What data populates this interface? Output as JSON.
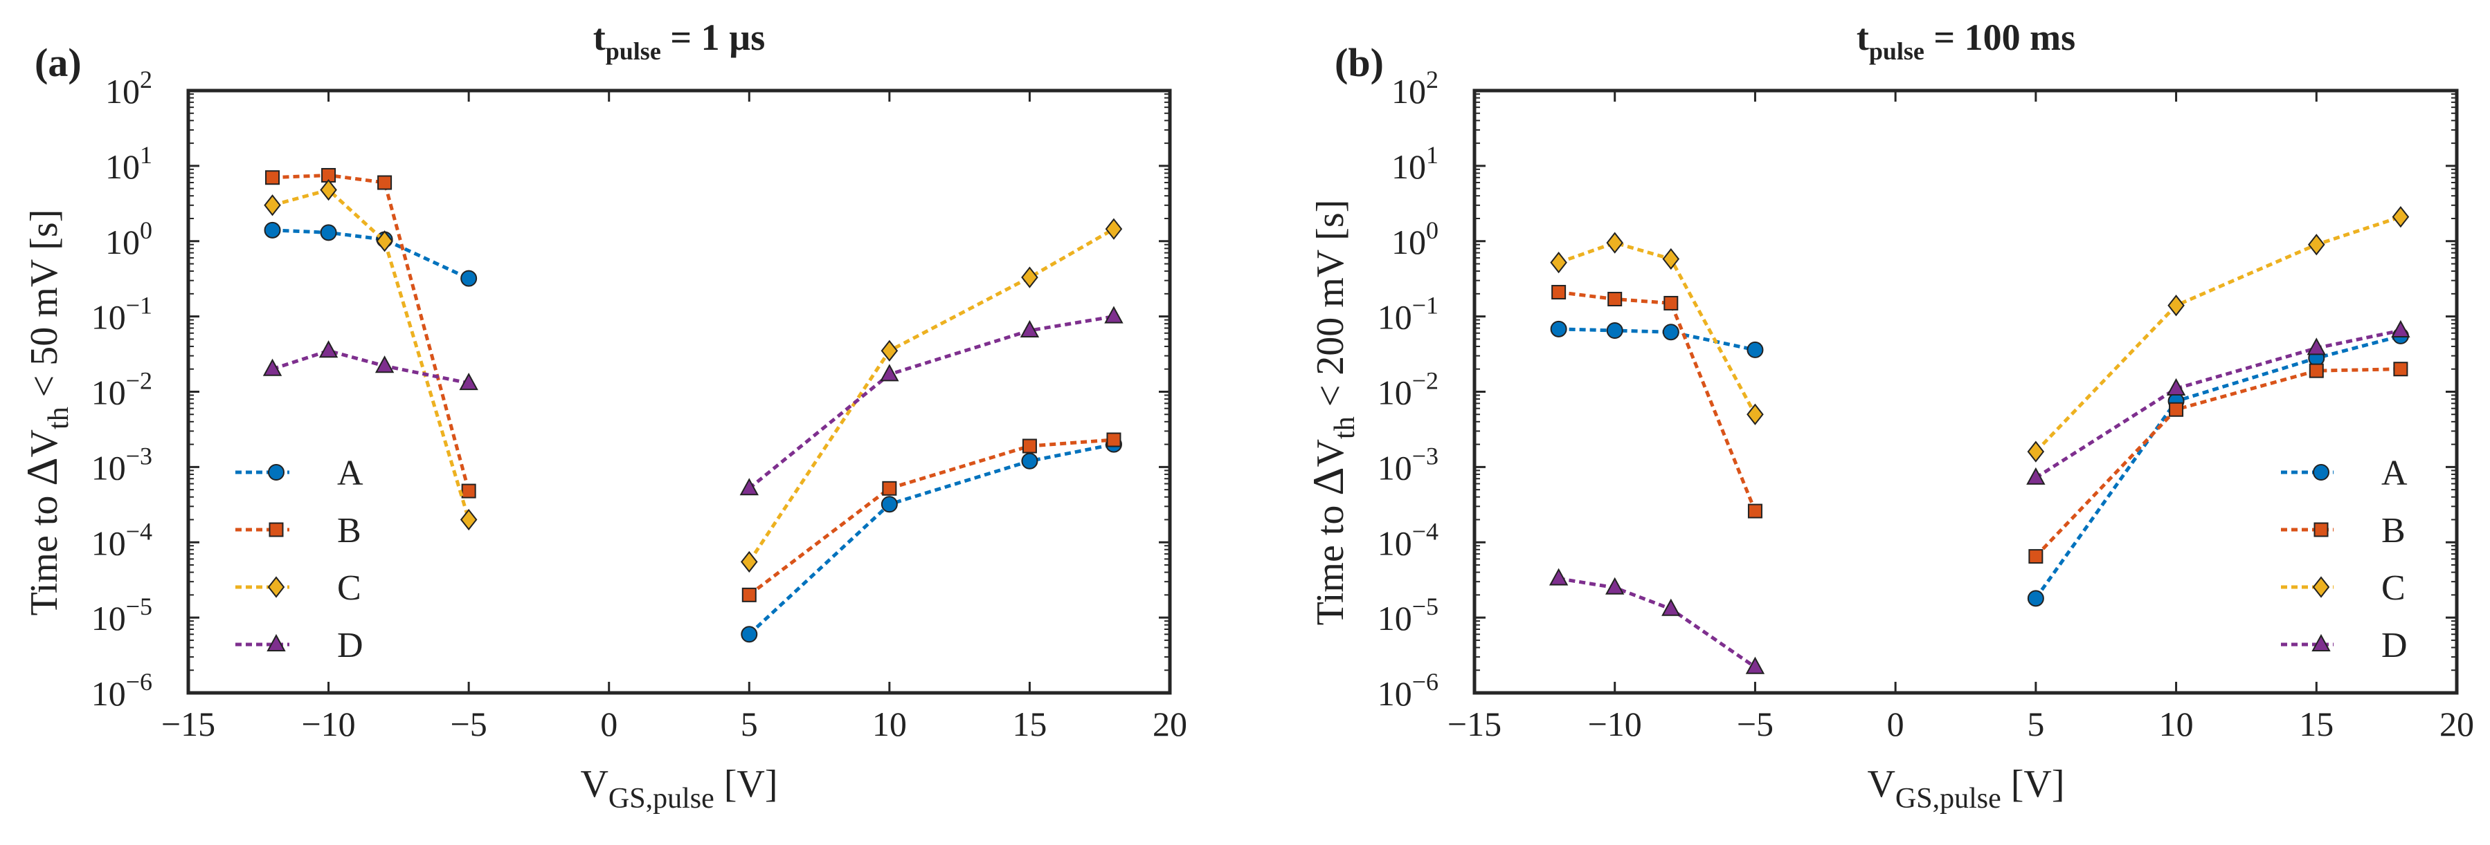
{
  "figure": {
    "panels": [
      {
        "label": "(a)",
        "title_main": "t",
        "title_sub": "pulse",
        "title_rest": " = 1 µs",
        "ylabel_pre": "Time to ",
        "ylabel_delta": "Δ",
        "ylabel_v": "V",
        "ylabel_sub": "th",
        "ylabel_post": " < 50 mV [s]"
      },
      {
        "label": "(b)",
        "title_main": "t",
        "title_sub": "pulse",
        "title_rest": " = 100 ms",
        "ylabel_pre": "Time to ",
        "ylabel_delta": "Δ",
        "ylabel_v": "V",
        "ylabel_sub": "th",
        "ylabel_post": " < 200 mV [s]"
      }
    ],
    "xlabel_main": "V",
    "xlabel_sub": "GS,pulse",
    "xlabel_unit": " [V]",
    "ytick_base": "10"
  },
  "chart_data": [
    {
      "type": "line",
      "title": "tpulse = 1 µs",
      "xlabel": "VGS,pulse [V]",
      "ylabel": "Time to ΔVth < 50 mV [s]",
      "yscale": "log",
      "xlim": [
        -15,
        20
      ],
      "ylim": [
        1e-06,
        100
      ],
      "xticks": [
        -15,
        -10,
        -5,
        0,
        5,
        10,
        15,
        20
      ],
      "yticks_exp": [
        -6,
        -5,
        -4,
        -3,
        -2,
        -1,
        0,
        1,
        2
      ],
      "legend_position": "lower-left",
      "series": [
        {
          "name": "A",
          "color": "#0072BD",
          "marker": "circle",
          "segments": [
            {
              "x": [
                -12,
                -10,
                -8,
                -5
              ],
              "y": [
                1.4,
                1.3,
                1.05,
                0.32
              ]
            },
            {
              "x": [
                5,
                10,
                15,
                18
              ],
              "y": [
                6e-06,
                0.00032,
                0.0012,
                0.002
              ]
            }
          ]
        },
        {
          "name": "B",
          "color": "#D95319",
          "marker": "square",
          "segments": [
            {
              "x": [
                -12,
                -10,
                -8,
                -5
              ],
              "y": [
                7.0,
                7.5,
                6.0,
                0.00048
              ]
            },
            {
              "x": [
                5,
                10,
                15,
                18
              ],
              "y": [
                2e-05,
                0.00052,
                0.0019,
                0.0023
              ]
            }
          ]
        },
        {
          "name": "C",
          "color": "#EDB120",
          "marker": "diamond",
          "segments": [
            {
              "x": [
                -12,
                -10,
                -8,
                -5
              ],
              "y": [
                3.0,
                4.8,
                1.0,
                0.0002
              ]
            },
            {
              "x": [
                5,
                10,
                15,
                18
              ],
              "y": [
                5.5e-05,
                0.035,
                0.33,
                1.45
              ]
            }
          ]
        },
        {
          "name": "D",
          "color": "#7E2F8E",
          "marker": "triangle",
          "segments": [
            {
              "x": [
                -12,
                -10,
                -8,
                -5
              ],
              "y": [
                0.02,
                0.035,
                0.022,
                0.013
              ]
            },
            {
              "x": [
                5,
                10,
                15,
                18
              ],
              "y": [
                0.00052,
                0.017,
                0.065,
                0.1
              ]
            }
          ]
        }
      ]
    },
    {
      "type": "line",
      "title": "tpulse = 100 ms",
      "xlabel": "VGS,pulse [V]",
      "ylabel": "Time to ΔVth < 200 mV [s]",
      "yscale": "log",
      "xlim": [
        -15,
        20
      ],
      "ylim": [
        1e-06,
        100
      ],
      "xticks": [
        -15,
        -10,
        -5,
        0,
        5,
        10,
        15,
        20
      ],
      "yticks_exp": [
        -6,
        -5,
        -4,
        -3,
        -2,
        -1,
        0,
        1,
        2
      ],
      "legend_position": "lower-right",
      "series": [
        {
          "name": "A",
          "color": "#0072BD",
          "marker": "circle",
          "segments": [
            {
              "x": [
                -12,
                -10,
                -8,
                -5
              ],
              "y": [
                0.068,
                0.065,
                0.062,
                0.036
              ]
            },
            {
              "x": [
                5,
                10,
                15,
                18
              ],
              "y": [
                1.8e-05,
                0.0075,
                0.028,
                0.055
              ]
            }
          ]
        },
        {
          "name": "B",
          "color": "#D95319",
          "marker": "square",
          "segments": [
            {
              "x": [
                -12,
                -10,
                -8,
                -5
              ],
              "y": [
                0.21,
                0.17,
                0.15,
                0.00026
              ]
            },
            {
              "x": [
                5,
                10,
                15,
                18
              ],
              "y": [
                6.5e-05,
                0.0058,
                0.019,
                0.02
              ]
            }
          ]
        },
        {
          "name": "C",
          "color": "#EDB120",
          "marker": "diamond",
          "segments": [
            {
              "x": [
                -12,
                -10,
                -8,
                -5
              ],
              "y": [
                0.52,
                0.95,
                0.58,
                0.005
              ]
            },
            {
              "x": [
                5,
                10,
                15,
                18
              ],
              "y": [
                0.0016,
                0.14,
                0.9,
                2.1
              ]
            }
          ]
        },
        {
          "name": "D",
          "color": "#7E2F8E",
          "marker": "triangle",
          "segments": [
            {
              "x": [
                -12,
                -10,
                -8,
                -5
              ],
              "y": [
                3.3e-05,
                2.5e-05,
                1.3e-05,
                2.2e-06
              ]
            },
            {
              "x": [
                5,
                10,
                15,
                18
              ],
              "y": [
                0.00072,
                0.011,
                0.038,
                0.065
              ]
            }
          ]
        }
      ]
    }
  ]
}
